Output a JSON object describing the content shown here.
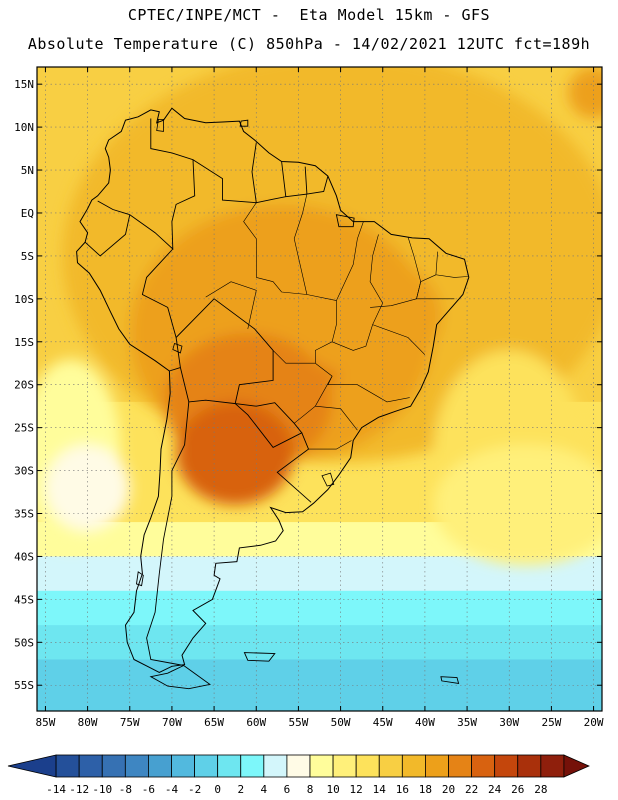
{
  "header": {
    "line1": "CPTEC/INPE/MCT -  Eta Model 15km - GFS",
    "line2": "Absolute Temperature (C) 850hPa - 14/02/2021 12UTC fct=189h"
  },
  "map": {
    "lon_range": [
      -86,
      -19
    ],
    "lat_range": [
      -58,
      17
    ],
    "lat_ticks": [
      {
        "value": 15,
        "label": "15N"
      },
      {
        "value": 10,
        "label": "10N"
      },
      {
        "value": 5,
        "label": "5N"
      },
      {
        "value": 0,
        "label": "EQ"
      },
      {
        "value": -5,
        "label": "5S"
      },
      {
        "value": -10,
        "label": "10S"
      },
      {
        "value": -15,
        "label": "15S"
      },
      {
        "value": -20,
        "label": "20S"
      },
      {
        "value": -25,
        "label": "25S"
      },
      {
        "value": -30,
        "label": "30S"
      },
      {
        "value": -35,
        "label": "35S"
      },
      {
        "value": -40,
        "label": "40S"
      },
      {
        "value": -45,
        "label": "45S"
      },
      {
        "value": -50,
        "label": "50S"
      },
      {
        "value": -55,
        "label": "55S"
      }
    ],
    "lon_ticks": [
      {
        "value": -85,
        "label": "85W"
      },
      {
        "value": -80,
        "label": "80W"
      },
      {
        "value": -75,
        "label": "75W"
      },
      {
        "value": -70,
        "label": "70W"
      },
      {
        "value": -65,
        "label": "65W"
      },
      {
        "value": -60,
        "label": "60W"
      },
      {
        "value": -55,
        "label": "55W"
      },
      {
        "value": -50,
        "label": "50W"
      },
      {
        "value": -45,
        "label": "45W"
      },
      {
        "value": -40,
        "label": "40W"
      },
      {
        "value": -35,
        "label": "35W"
      },
      {
        "value": -30,
        "label": "30W"
      },
      {
        "value": -25,
        "label": "25W"
      },
      {
        "value": -20,
        "label": "20W"
      }
    ],
    "coastline": [
      [
        -77.5,
        8.5
      ],
      [
        -76,
        9.5
      ],
      [
        -75.5,
        10.8
      ],
      [
        -74,
        11.2
      ],
      [
        -72.5,
        12
      ],
      [
        -71.5,
        11.8
      ],
      [
        -71.8,
        10.5
      ],
      [
        -71,
        10.8
      ],
      [
        -70,
        12.2
      ],
      [
        -68.5,
        11
      ],
      [
        -66,
        10.5
      ],
      [
        -64,
        10.6
      ],
      [
        -62,
        10.7
      ],
      [
        -61.5,
        9.5
      ],
      [
        -60.2,
        8.5
      ],
      [
        -58.5,
        7
      ],
      [
        -57,
        6
      ],
      [
        -55,
        5.9
      ],
      [
        -53,
        5.5
      ],
      [
        -51.5,
        4.3
      ],
      [
        -50.5,
        2
      ],
      [
        -50,
        0.3
      ],
      [
        -48.5,
        -1
      ],
      [
        -46,
        -1
      ],
      [
        -44,
        -2.5
      ],
      [
        -41.5,
        -2.9
      ],
      [
        -39.5,
        -3
      ],
      [
        -37.5,
        -4.7
      ],
      [
        -35.3,
        -5.4
      ],
      [
        -34.8,
        -7.5
      ],
      [
        -35.5,
        -9.5
      ],
      [
        -37,
        -11.2
      ],
      [
        -38.6,
        -13
      ],
      [
        -39,
        -15.5
      ],
      [
        -39.6,
        -18.5
      ],
      [
        -40.5,
        -20.5
      ],
      [
        -41.7,
        -22.5
      ],
      [
        -43.5,
        -23.1
      ],
      [
        -45.5,
        -23.8
      ],
      [
        -47.5,
        -25
      ],
      [
        -48.5,
        -26.5
      ],
      [
        -48.8,
        -28.5
      ],
      [
        -50.2,
        -30.5
      ],
      [
        -51.5,
        -32.2
      ],
      [
        -53.2,
        -33.8
      ],
      [
        -54.5,
        -34.8
      ],
      [
        -56.5,
        -34.9
      ],
      [
        -58.3,
        -34.3
      ],
      [
        -57.3,
        -35.8
      ],
      [
        -56.8,
        -37
      ],
      [
        -57.7,
        -38.2
      ],
      [
        -59.5,
        -38.7
      ],
      [
        -62,
        -39
      ],
      [
        -62.3,
        -40.6
      ],
      [
        -64.8,
        -40.8
      ],
      [
        -65,
        -42.2
      ],
      [
        -64.3,
        -42.6
      ],
      [
        -65.2,
        -45
      ],
      [
        -67.5,
        -46.3
      ],
      [
        -66,
        -47.8
      ],
      [
        -67.5,
        -49.5
      ],
      [
        -68.8,
        -51.5
      ],
      [
        -68.5,
        -52.6
      ],
      [
        -70,
        -52.8
      ],
      [
        -71.5,
        -53.5
      ],
      [
        -72.5,
        -53
      ],
      [
        -74.5,
        -52
      ],
      [
        -75.3,
        -50
      ],
      [
        -75.5,
        -48
      ],
      [
        -74.5,
        -46.5
      ],
      [
        -74.2,
        -44
      ],
      [
        -73.5,
        -42
      ],
      [
        -73.7,
        -40
      ],
      [
        -73.3,
        -37.5
      ],
      [
        -72.5,
        -35.5
      ],
      [
        -71.6,
        -33
      ],
      [
        -71.4,
        -30
      ],
      [
        -71.3,
        -27.5
      ],
      [
        -70.6,
        -24
      ],
      [
        -70.2,
        -21
      ],
      [
        -70.3,
        -18.4
      ],
      [
        -72,
        -17.2
      ],
      [
        -75,
        -15.3
      ],
      [
        -76.3,
        -13.5
      ],
      [
        -77.3,
        -11.5
      ],
      [
        -78.5,
        -9
      ],
      [
        -79.8,
        -7
      ],
      [
        -81.2,
        -5.8
      ],
      [
        -81.3,
        -4.5
      ],
      [
        -80.3,
        -3.4
      ],
      [
        -80,
        -2.3
      ],
      [
        -80.9,
        -1
      ],
      [
        -80,
        0.5
      ],
      [
        -79.5,
        1.5
      ],
      [
        -78.8,
        2
      ],
      [
        -77.5,
        3.5
      ],
      [
        -77.3,
        5
      ],
      [
        -77.5,
        6.5
      ],
      [
        -77.9,
        7.5
      ],
      [
        -77.5,
        8.5
      ]
    ],
    "islands": [
      [
        [
          -68.6,
          -52.7
        ],
        [
          -65.5,
          -54.9
        ],
        [
          -68,
          -55.4
        ],
        [
          -70.5,
          -55.1
        ],
        [
          -72.5,
          -54
        ],
        [
          -70.5,
          -53.6
        ],
        [
          -68.6,
          -52.7
        ]
      ],
      [
        [
          -61.4,
          -51.2
        ],
        [
          -57.8,
          -51.3
        ],
        [
          -58.5,
          -52.2
        ],
        [
          -61,
          -52.1
        ],
        [
          -61.4,
          -51.2
        ]
      ],
      [
        [
          -74,
          -41.8
        ],
        [
          -73.4,
          -42.2
        ],
        [
          -73.6,
          -43.4
        ],
        [
          -74.2,
          -43.2
        ],
        [
          -74,
          -41.8
        ]
      ],
      [
        [
          -38.1,
          -54
        ],
        [
          -36.2,
          -54.1
        ],
        [
          -36,
          -54.8
        ],
        [
          -38,
          -54.5
        ],
        [
          -38.1,
          -54
        ]
      ],
      [
        [
          -50.5,
          -0.2
        ],
        [
          -48.4,
          -0.6
        ],
        [
          -48.5,
          -1.6
        ],
        [
          -50.2,
          -1.6
        ],
        [
          -50.5,
          -0.2
        ]
      ],
      [
        [
          -61.8,
          10.7
        ],
        [
          -61,
          10.8
        ],
        [
          -61,
          10.1
        ],
        [
          -61.9,
          10.1
        ],
        [
          -61.8,
          10.7
        ]
      ]
    ],
    "borders": [
      [
        [
          -75,
          -0.2
        ],
        [
          -77,
          0.4
        ],
        [
          -78.8,
          1.4
        ]
      ],
      [
        [
          -80.3,
          -3.4
        ],
        [
          -78.5,
          -5
        ],
        [
          -75.5,
          -2.5
        ],
        [
          -75,
          -0.2
        ]
      ],
      [
        [
          -75,
          -0.2
        ],
        [
          -72,
          -2.3
        ],
        [
          -69.9,
          -4.2
        ],
        [
          -70,
          -1
        ],
        [
          -69.5,
          1
        ],
        [
          -67.3,
          2
        ],
        [
          -67.5,
          6.2
        ],
        [
          -70,
          7
        ],
        [
          -72.5,
          7.5
        ],
        [
          -72.5,
          11
        ]
      ],
      [
        [
          -69.9,
          -4.2
        ],
        [
          -73,
          -7.5
        ],
        [
          -73.5,
          -9.5
        ],
        [
          -70.5,
          -11
        ],
        [
          -69.5,
          -14.5
        ],
        [
          -69,
          -18
        ],
        [
          -70.3,
          -18.4
        ]
      ],
      [
        [
          -69.5,
          -14.5
        ],
        [
          -65,
          -10
        ],
        [
          -60.2,
          -13.5
        ],
        [
          -58,
          -16
        ],
        [
          -58,
          -19.5
        ],
        [
          -62,
          -20
        ],
        [
          -62.5,
          -22.2
        ],
        [
          -66,
          -21.8
        ],
        [
          -68,
          -22
        ],
        [
          -69,
          -18
        ]
      ],
      [
        [
          -62.5,
          -22.2
        ],
        [
          -60,
          -22.5
        ],
        [
          -57.8,
          -22.1
        ],
        [
          -55.5,
          -24.5
        ],
        [
          -54.6,
          -25.6
        ],
        [
          -58,
          -27.3
        ],
        [
          -61,
          -23.5
        ],
        [
          -62.5,
          -22.2
        ]
      ],
      [
        [
          -54.6,
          -25.6
        ],
        [
          -53.8,
          -27.5
        ],
        [
          -57.5,
          -30.2
        ],
        [
          -53.5,
          -33.7
        ]
      ],
      [
        [
          -68,
          -22
        ],
        [
          -68.5,
          -27
        ],
        [
          -70,
          -30
        ],
        [
          -70,
          -33
        ],
        [
          -71,
          -38
        ],
        [
          -71.5,
          -42
        ],
        [
          -72,
          -46.5
        ],
        [
          -73,
          -49.5
        ],
        [
          -72.5,
          -52
        ],
        [
          -68.6,
          -52.7
        ]
      ],
      [
        [
          -67.5,
          6.2
        ],
        [
          -64,
          4
        ],
        [
          -64,
          1.5
        ],
        [
          -60,
          1.2
        ],
        [
          -60.5,
          4.8
        ],
        [
          -60,
          8.2
        ]
      ],
      [
        [
          -60,
          1.2
        ],
        [
          -58,
          1.6
        ],
        [
          -56.5,
          1.9
        ],
        [
          -57,
          6
        ]
      ],
      [
        [
          -56.5,
          1.9
        ],
        [
          -54,
          2.2
        ],
        [
          -54.2,
          5.4
        ]
      ],
      [
        [
          -54,
          2.2
        ],
        [
          -52,
          2.5
        ],
        [
          -51.5,
          4.3
        ]
      ]
    ],
    "state_lines": [
      [
        [
          -60,
          -7.5
        ],
        [
          -58,
          -8
        ],
        [
          -57,
          -9.2
        ],
        [
          -54,
          -9.5
        ],
        [
          -50.5,
          -10.2
        ]
      ],
      [
        [
          -50.5,
          -10.2
        ],
        [
          -50.5,
          -13
        ],
        [
          -51,
          -15
        ],
        [
          -53,
          -16
        ],
        [
          -53,
          -17.5
        ]
      ],
      [
        [
          -50.5,
          -10.2
        ],
        [
          -48.5,
          -6
        ],
        [
          -48,
          -3
        ],
        [
          -47.3,
          -1
        ]
      ],
      [
        [
          -45.5,
          -2.5
        ],
        [
          -46.2,
          -5
        ],
        [
          -46.5,
          -8
        ],
        [
          -45,
          -10.5
        ],
        [
          -46.2,
          -13
        ]
      ],
      [
        [
          -46.2,
          -13
        ],
        [
          -47,
          -15.5
        ],
        [
          -48.5,
          -16
        ],
        [
          -51,
          -15
        ]
      ],
      [
        [
          -46.2,
          -13
        ],
        [
          -42,
          -14.5
        ],
        [
          -40,
          -16.5
        ]
      ],
      [
        [
          -42,
          -2.8
        ],
        [
          -41.3,
          -5
        ],
        [
          -40.5,
          -8
        ],
        [
          -41,
          -10
        ]
      ],
      [
        [
          -38.5,
          -4.5
        ],
        [
          -38.7,
          -7.2
        ],
        [
          -36.5,
          -7.5
        ],
        [
          -34.9,
          -7.4
        ]
      ],
      [
        [
          -38.7,
          -7.2
        ],
        [
          -40.5,
          -8
        ],
        [
          -41,
          -10
        ],
        [
          -38,
          -10
        ],
        [
          -36.5,
          -10
        ]
      ],
      [
        [
          -41,
          -10
        ],
        [
          -44,
          -10.8
        ],
        [
          -46.5,
          -11
        ]
      ],
      [
        [
          -53,
          -17.5
        ],
        [
          -51,
          -19
        ],
        [
          -51.5,
          -20
        ],
        [
          -48,
          -20
        ],
        [
          -44.5,
          -22
        ],
        [
          -41.8,
          -21.5
        ]
      ],
      [
        [
          -51,
          -19
        ],
        [
          -53,
          -22.5
        ],
        [
          -55.5,
          -24.5
        ]
      ],
      [
        [
          -53,
          -22.5
        ],
        [
          -50,
          -22.8
        ],
        [
          -48,
          -25.3
        ]
      ],
      [
        [
          -53.8,
          -27.5
        ],
        [
          -50.5,
          -27.5
        ],
        [
          -48.7,
          -26.5
        ]
      ],
      [
        [
          -61,
          -13.5
        ],
        [
          -60,
          -9
        ],
        [
          -63,
          -8
        ],
        [
          -66,
          -9.8
        ]
      ],
      [
        [
          -60,
          -7.5
        ],
        [
          -60,
          -3
        ],
        [
          -61.5,
          -1
        ],
        [
          -60,
          1.2
        ]
      ],
      [
        [
          -54,
          -9.5
        ],
        [
          -55.5,
          -3
        ],
        [
          -54.5,
          0
        ],
        [
          -54,
          2.2
        ]
      ],
      [
        [
          -58,
          -16
        ],
        [
          -56.5,
          -17.5
        ],
        [
          -53,
          -17.5
        ]
      ]
    ],
    "lakes": [
      [
        [
          -69.7,
          -15.2
        ],
        [
          -68.8,
          -15.5
        ],
        [
          -69,
          -16.3
        ],
        [
          -69.9,
          -15.9
        ],
        [
          -69.7,
          -15.2
        ]
      ],
      [
        [
          -71.6,
          10.9
        ],
        [
          -71,
          10.9
        ],
        [
          -71,
          9.5
        ],
        [
          -71.8,
          9.6
        ],
        [
          -71.6,
          10.9
        ]
      ],
      [
        [
          -52.2,
          -30.6
        ],
        [
          -51.2,
          -30.3
        ],
        [
          -50.8,
          -31.6
        ],
        [
          -51.6,
          -31.8
        ],
        [
          -52.2,
          -30.6
        ]
      ]
    ],
    "temperature_blobs": [
      {
        "lon": -50,
        "lat": -5,
        "rx": 33,
        "ry": 24,
        "temp": 16
      },
      {
        "lon": -57,
        "lat": -14,
        "rx": 18,
        "ry": 15,
        "temp": 18
      },
      {
        "lon": -61,
        "lat": -22,
        "rx": 10,
        "ry": 8,
        "temp": 20
      },
      {
        "lon": -62.5,
        "lat": -28,
        "rx": 7,
        "ry": 6,
        "temp": 22
      },
      {
        "lon": -55,
        "lat": -18.5,
        "rx": 5,
        "ry": 2.5,
        "temp": 20
      },
      {
        "lon": -47,
        "lat": -12,
        "rx": 9,
        "ry": 7,
        "temp": 18
      },
      {
        "lon": -30,
        "lat": -28,
        "rx": 9,
        "ry": 12,
        "temp": 12
      },
      {
        "lon": -28,
        "lat": -34,
        "rx": 11,
        "ry": 7,
        "temp": 10
      },
      {
        "lon": -82,
        "lat": -28,
        "rx": 6,
        "ry": 11,
        "temp": 8
      },
      {
        "lon": -80,
        "lat": -32,
        "rx": 5,
        "ry": 5,
        "temp": 6
      },
      {
        "lon": -20,
        "lat": 14,
        "rx": 3,
        "ry": 3,
        "temp": 18
      }
    ],
    "temperature_bands": [
      {
        "lat_top": 17,
        "lat_bottom": 7,
        "temp": 14
      },
      {
        "lat_top": 7,
        "lat_bottom": -22,
        "temp": 14
      },
      {
        "lat_top": -22,
        "lat_bottom": -36,
        "temp": 12
      },
      {
        "lat_top": -36,
        "lat_bottom": -40,
        "temp": 8
      },
      {
        "lat_top": -40,
        "lat_bottom": -44,
        "temp": 4
      },
      {
        "lat_top": -44,
        "lat_bottom": -48,
        "temp": 2
      },
      {
        "lat_top": -48,
        "lat_bottom": -52,
        "temp": 0
      },
      {
        "lat_top": -52,
        "lat_bottom": -58,
        "temp": -2
      }
    ]
  },
  "colorbar": {
    "labels": [
      "-14",
      "-12",
      "-10",
      "-8",
      "-6",
      "-4",
      "-2",
      "0",
      "2",
      "4",
      "6",
      "8",
      "10",
      "12",
      "14",
      "16",
      "18",
      "20",
      "22",
      "24",
      "26",
      "28"
    ],
    "colors": [
      "#1b3f8c",
      "#24509a",
      "#2d60a8",
      "#3671b3",
      "#3e86c2",
      "#47a0d0",
      "#52b9de",
      "#5fd0e8",
      "#6ee6f0",
      "#7df7fa",
      "#d3f6fb",
      "#fffbe6",
      "#fffd9b",
      "#fff07a",
      "#fde25b",
      "#f8cf43",
      "#f2b92a",
      "#eda01a",
      "#e58316",
      "#d86210",
      "#c4460c",
      "#a9300b",
      "#8f1f0c",
      "#751109"
    ]
  }
}
